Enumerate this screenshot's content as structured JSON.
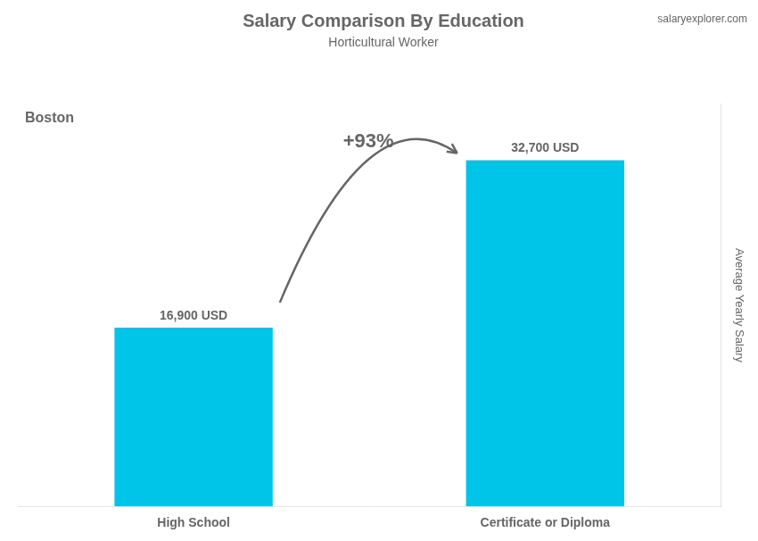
{
  "chart_data": {
    "type": "bar",
    "title": "Salary Comparison By Education",
    "subtitle": "Horticultural Worker",
    "ylabel": "Average Yearly Salary",
    "annotations": [
      "Boston",
      "+93%",
      "salaryexplorer.com"
    ],
    "categories": [
      "High School",
      "Certificate or Diploma"
    ],
    "values": [
      16900,
      32700
    ],
    "value_labels": [
      "16,900 USD",
      "32,700 USD"
    ],
    "data_labels": true,
    "color": "#00C4E8",
    "ylim": [
      0,
      38000
    ],
    "grid": false,
    "tick_labels": "x"
  }
}
